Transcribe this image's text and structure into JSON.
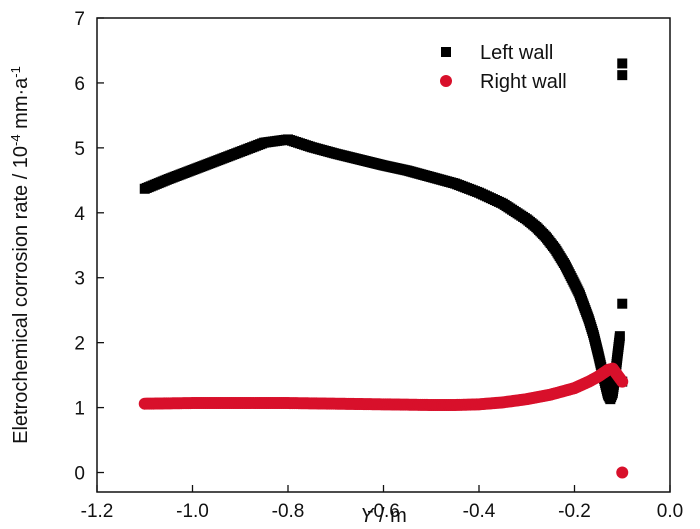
{
  "chart_data": {
    "type": "scatter",
    "xlabel": {
      "italic": "Y",
      "rest": " / m"
    },
    "ylabel": {
      "main": "Eletrochemical corrosion rate / 10",
      "exp1": "-4",
      "mid": " mm·a",
      "exp2": "-1"
    },
    "xlim": [
      -1.2,
      0.0
    ],
    "ylim": [
      -0.3,
      7.0
    ],
    "xticks": [
      -1.2,
      -1.0,
      -0.8,
      -0.6,
      -0.4,
      -0.2,
      0.0
    ],
    "xtick_labels": [
      "-1.2",
      "-1.0",
      "-0.8",
      "-0.6",
      "-0.4",
      "-0.2",
      "0.0"
    ],
    "yticks": [
      0,
      1,
      2,
      3,
      4,
      5,
      6,
      7
    ],
    "ytick_labels": [
      "0",
      "1",
      "2",
      "3",
      "4",
      "5",
      "6",
      "7"
    ],
    "grid": false,
    "legend_position": "top-right",
    "series": [
      {
        "name": "Left wall",
        "marker": "square",
        "color": "#000000",
        "x": [
          -1.1,
          -1.05,
          -1.0,
          -0.95,
          -0.9,
          -0.85,
          -0.8,
          -0.75,
          -0.7,
          -0.65,
          -0.6,
          -0.55,
          -0.5,
          -0.45,
          -0.4,
          -0.35,
          -0.3,
          -0.28,
          -0.26,
          -0.24,
          -0.22,
          -0.2,
          -0.19,
          -0.18,
          -0.17,
          -0.16,
          -0.15,
          -0.14,
          -0.13,
          -0.125,
          -0.12,
          -0.115,
          -0.11,
          -0.105,
          -0.1,
          -0.1,
          -0.1,
          -0.1
        ],
        "y": [
          4.37,
          4.52,
          4.66,
          4.8,
          4.94,
          5.08,
          5.13,
          5.01,
          4.91,
          4.82,
          4.73,
          4.65,
          4.55,
          4.45,
          4.31,
          4.14,
          3.9,
          3.78,
          3.63,
          3.44,
          3.2,
          2.91,
          2.76,
          2.56,
          2.36,
          2.12,
          1.82,
          1.5,
          1.2,
          1.13,
          1.22,
          1.48,
          1.8,
          2.1,
          2.6,
          1.4,
          6.12,
          6.3
        ]
      },
      {
        "name": "Right wall",
        "marker": "circle",
        "color": "#d8102b",
        "x": [
          -1.1,
          -1.0,
          -0.9,
          -0.8,
          -0.7,
          -0.6,
          -0.5,
          -0.45,
          -0.4,
          -0.35,
          -0.3,
          -0.25,
          -0.2,
          -0.17,
          -0.15,
          -0.13,
          -0.12,
          -0.11,
          -0.1,
          -0.1
        ],
        "y": [
          1.06,
          1.07,
          1.07,
          1.07,
          1.06,
          1.05,
          1.04,
          1.04,
          1.05,
          1.08,
          1.13,
          1.2,
          1.3,
          1.4,
          1.48,
          1.58,
          1.6,
          1.5,
          1.4,
          0.0
        ]
      }
    ]
  }
}
